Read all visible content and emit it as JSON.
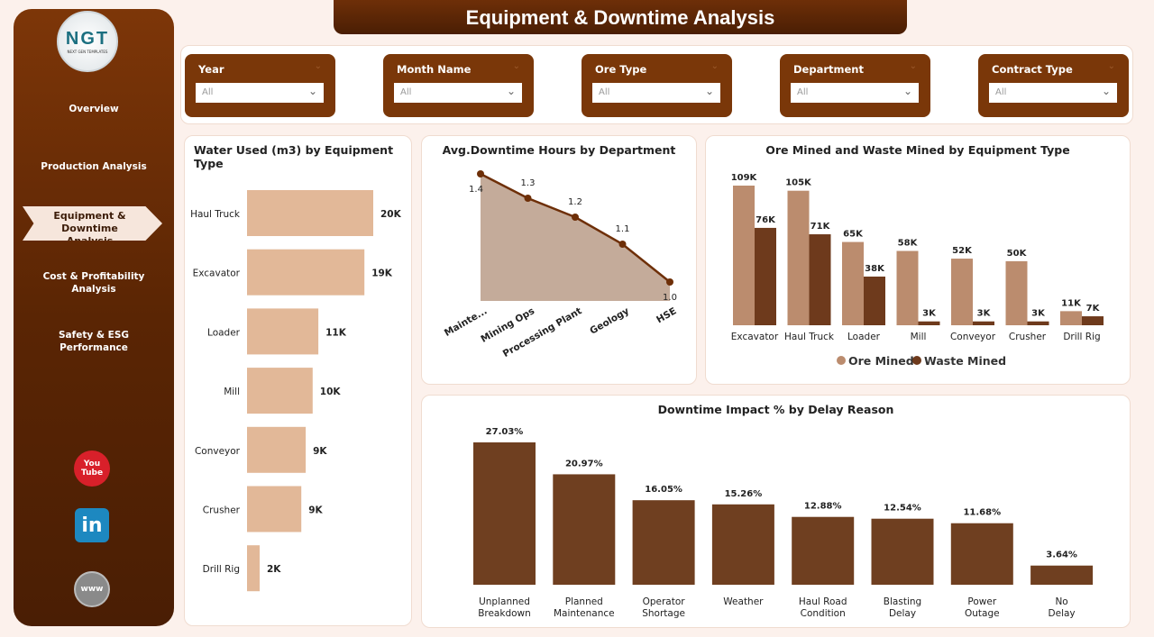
{
  "header": {
    "title": "Equipment & Downtime Analysis"
  },
  "logo": {
    "text": "NGT",
    "subtitle": "NEXT GEN TEMPLATES"
  },
  "sidebar": {
    "items": [
      {
        "label": "Overview"
      },
      {
        "label": "Production Analysis"
      },
      {
        "label": "Equipment & Downtime Analysis",
        "active": true
      },
      {
        "label": "Cost & Profitability Analysis"
      },
      {
        "label": "Safety & ESG Performance"
      }
    ],
    "social": [
      {
        "icon": "youtube-icon",
        "text": "You Tube"
      },
      {
        "icon": "linkedin-icon",
        "text": "in"
      },
      {
        "icon": "globe-www-icon",
        "text": "www"
      }
    ]
  },
  "filters": [
    {
      "label": "Year",
      "value": "All"
    },
    {
      "label": "Month Name",
      "value": "All"
    },
    {
      "label": "Ore Type",
      "value": "All"
    },
    {
      "label": "Department",
      "value": "All"
    },
    {
      "label": "Contract Type",
      "value": "All"
    }
  ],
  "colors": {
    "brand": "#7a3709",
    "light_bar": "#e2b898",
    "ore": "#bb8c6e",
    "waste": "#6e3a1c",
    "delay": "#6f3f20",
    "area": "#c4ab9a",
    "line": "#6e2f08"
  },
  "chart_data": [
    {
      "type": "bar",
      "orientation": "horizontal",
      "title": "Water Used (m3) by Equipment Type",
      "categories": [
        "Haul Truck",
        "Excavator",
        "Loader",
        "Mill",
        "Conveyor",
        "Crusher",
        "Drill Rig"
      ],
      "values": [
        20000,
        18600,
        11300,
        10400,
        9300,
        8600,
        2000
      ],
      "labels": [
        "20K",
        "19K",
        "11K",
        "10K",
        "9K",
        "9K",
        "2K"
      ]
    },
    {
      "type": "area",
      "title": "Avg.Downtime Hours by Department",
      "categories": [
        "Mainte...",
        "Mining Ops",
        "Processing Plant",
        "Geology",
        "HSE"
      ],
      "values": [
        1.4,
        1.31,
        1.24,
        1.14,
        1.0
      ],
      "labels": [
        "1.4",
        "1.3",
        "1.2",
        "1.1",
        "1.0"
      ],
      "ylim": [
        0.93,
        1.42
      ]
    },
    {
      "type": "bar",
      "title": "Ore Mined and Waste Mined by Equipment Type",
      "categories": [
        "Excavator",
        "Haul Truck",
        "Loader",
        "Mill",
        "Conveyor",
        "Crusher",
        "Drill Rig"
      ],
      "series": [
        {
          "name": "Ore Mined",
          "values": [
            109000,
            105000,
            65000,
            58000,
            52000,
            50000,
            11000
          ],
          "labels": [
            "109K",
            "105K",
            "65K",
            "58K",
            "52K",
            "50K",
            "11K"
          ]
        },
        {
          "name": "Waste Mined",
          "values": [
            76000,
            71000,
            38000,
            3000,
            3000,
            3000,
            7000
          ],
          "labels": [
            "76K",
            "71K",
            "38K",
            "3K",
            "3K",
            "3K",
            "7K"
          ]
        }
      ],
      "legend": "bottom"
    },
    {
      "type": "bar",
      "title": "Downtime Impact % by Delay Reason",
      "categories": [
        "Unplanned Breakdown",
        "Planned Maintenance",
        "Operator Shortage",
        "Weather",
        "Haul Road Condition",
        "Blasting Delay",
        "Power Outage",
        "No Delay"
      ],
      "values": [
        27.03,
        20.97,
        16.05,
        15.26,
        12.88,
        12.54,
        11.68,
        3.64
      ],
      "labels": [
        "27.03%",
        "20.97%",
        "16.05%",
        "15.26%",
        "12.88%",
        "12.54%",
        "11.68%",
        "3.64%"
      ]
    }
  ]
}
